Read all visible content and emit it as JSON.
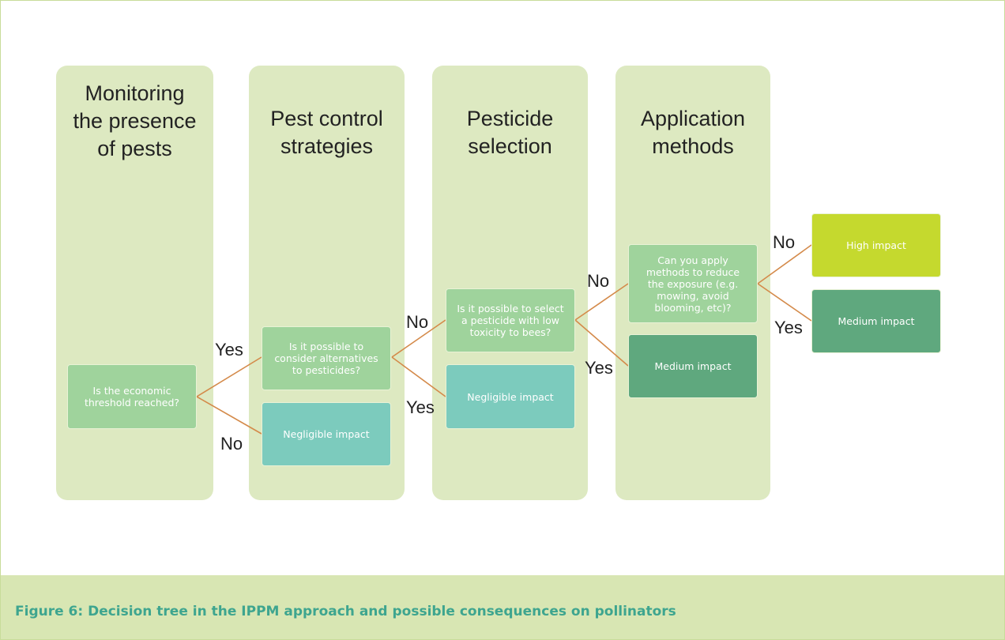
{
  "columns": [
    {
      "title": "Monitoring the presence of pests"
    },
    {
      "title": "Pest control strategies"
    },
    {
      "title": "Pesticide selection"
    },
    {
      "title": "Application methods"
    }
  ],
  "nodes": [
    {
      "label": "Is the economic threshold reached?"
    },
    {
      "label": "Is it possible to consider alternatives to pesticides?"
    },
    {
      "label": "Negligible impact"
    },
    {
      "label": "Is it possible to select a pesticide with low toxicity to bees?"
    },
    {
      "label": "Negligible impact"
    },
    {
      "label": "Can you apply methods to reduce the exposure (e.g. mowing, avoid blooming, etc)?"
    },
    {
      "label": "Medium impact"
    },
    {
      "label": "High impact"
    },
    {
      "label": "Medium impact"
    }
  ],
  "edges": [
    {
      "label": "Yes"
    },
    {
      "label": "No"
    },
    {
      "label": "No"
    },
    {
      "label": "Yes"
    },
    {
      "label": "No"
    },
    {
      "label": "Yes"
    },
    {
      "label": "No"
    },
    {
      "label": "Yes"
    }
  ],
  "caption": "Figure 6: Decision tree in the IPPM approach and possible consequences on pollinators"
}
